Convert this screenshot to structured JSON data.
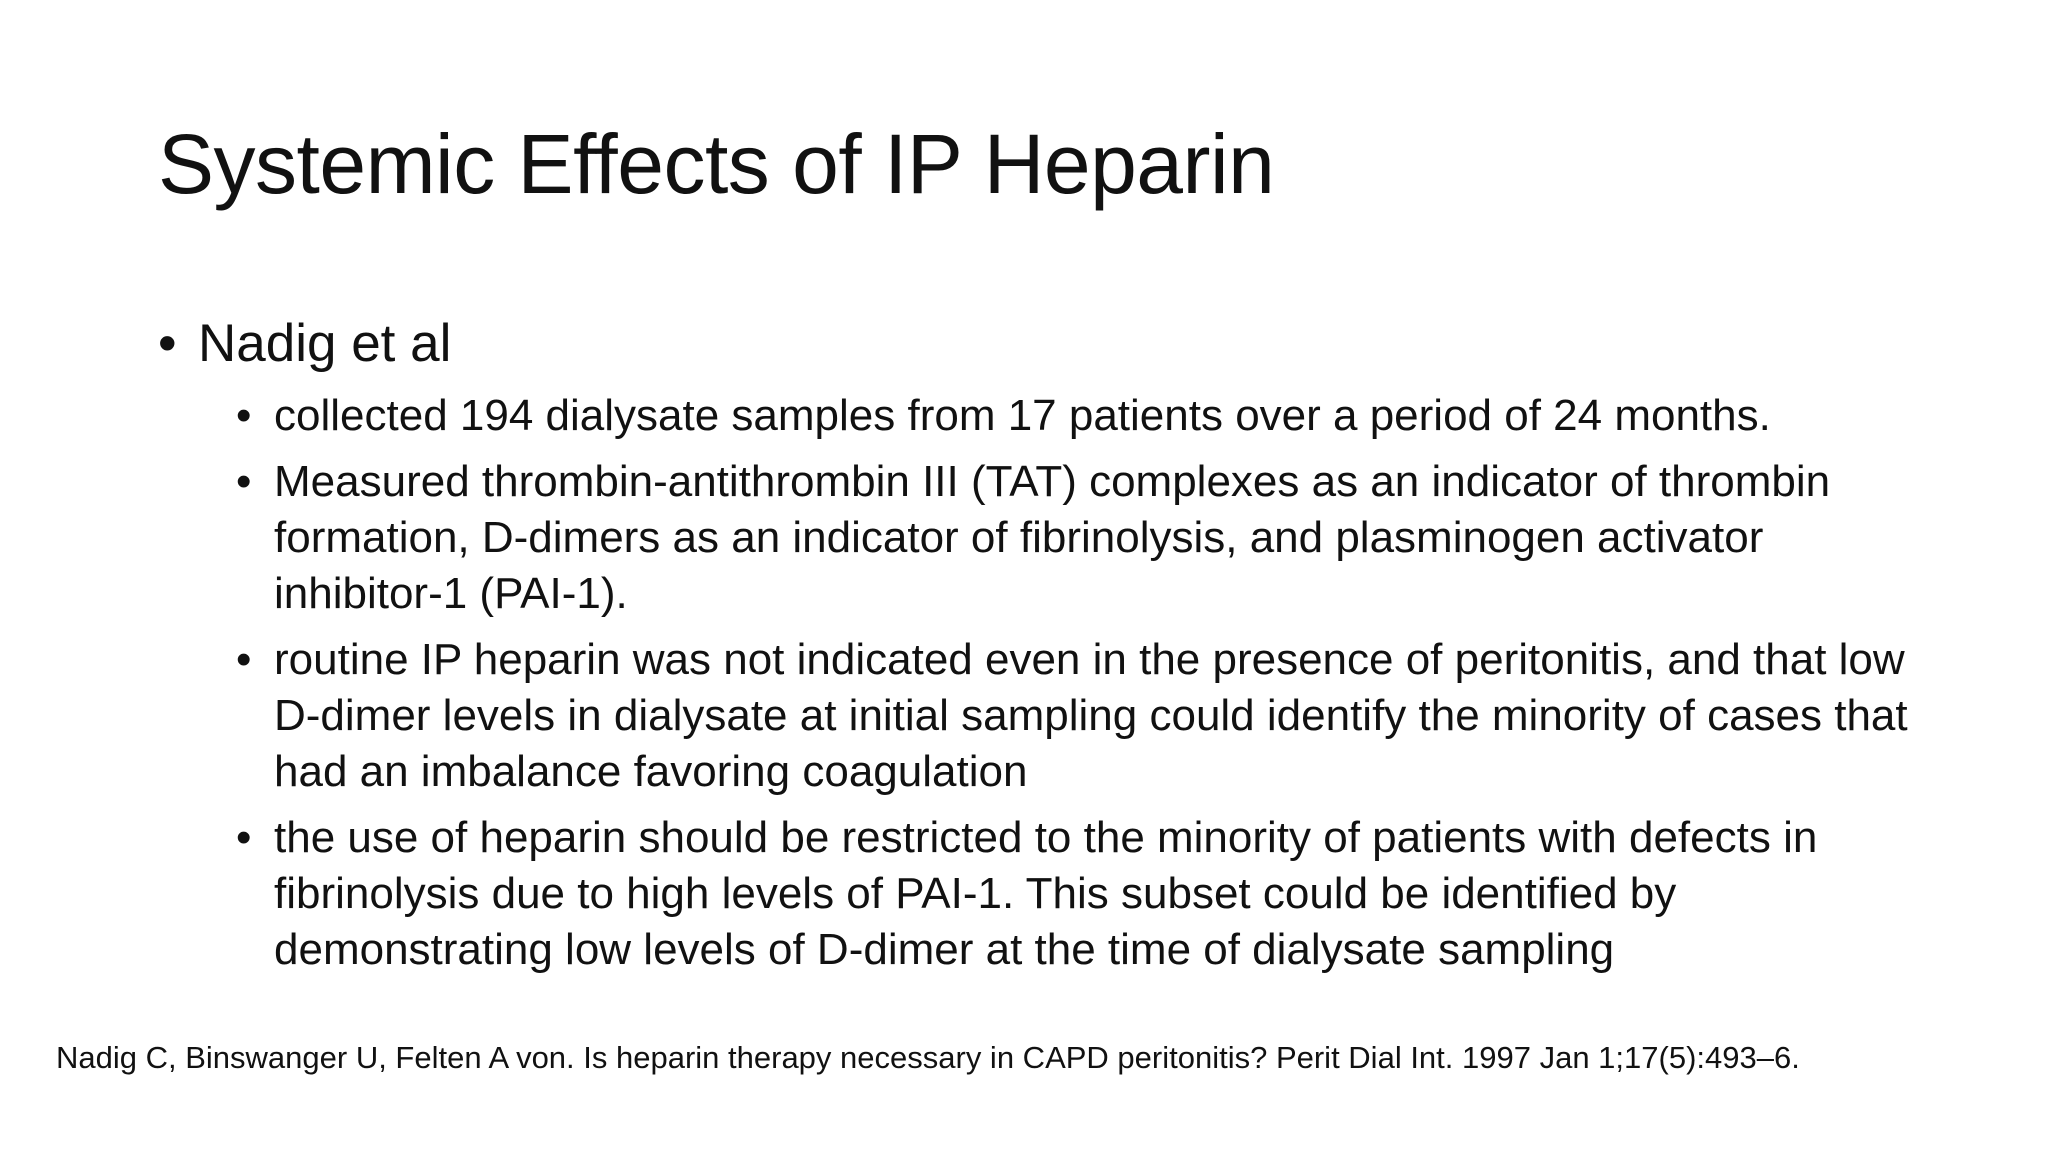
{
  "slide": {
    "title": "Systemic Effects of IP Heparin",
    "bullet_glyph": "•",
    "main_point": "Nadig et al",
    "sub_points": [
      "collected 194 dialysate samples from 17 patients over a period of 24 months.",
      "Measured thrombin-antithrombin III (TAT) complexes as an indicator of thrombin formation, D-dimers as an indicator of fibrinolysis, and plasminogen activator inhibitor-1 (PAI-1).",
      "routine IP heparin was not indicated even in the presence of peritonitis, and that low D-dimer levels in dialysate at initial sampling could identify the minority of cases that had an imbalance favoring coagulation",
      "the use of heparin should be restricted to the minority of patients with defects in fibrinolysis due to high levels of PAI-1. This subset could be identified by demonstrating low levels of D-dimer at the time of dialysate sampling"
    ],
    "citation": "Nadig C, Binswanger U, Felten A von. Is heparin therapy necessary in CAPD peritonitis? Perit Dial Int. 1997 Jan 1;17(5):493–6."
  }
}
